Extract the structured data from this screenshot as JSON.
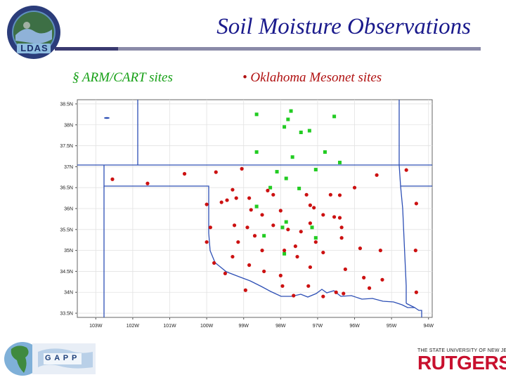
{
  "title": "Soil Moisture Observations",
  "logo": {
    "text": "LDAS",
    "icon": "ldas-globe-logo"
  },
  "legend": {
    "arm": {
      "bullet": "§",
      "label": "ARM/CART sites",
      "color": "#16b816"
    },
    "mesonet": {
      "bullet": "•",
      "label": "Oklahoma Mesonet sites",
      "color": "#cc1111"
    }
  },
  "chart_data": {
    "type": "scatter",
    "title": "",
    "xlabel": "",
    "ylabel": "",
    "xlim": [
      -103.5,
      -93.9
    ],
    "ylim": [
      33.4,
      38.6
    ],
    "grid": true,
    "x_ticks": [
      -103,
      -102,
      -101,
      -100,
      -99,
      -98,
      -97,
      -96,
      -95,
      -94
    ],
    "x_tick_labels": [
      "103W",
      "102W",
      "101W",
      "100W",
      "99W",
      "98W",
      "97W",
      "96W",
      "95W",
      "94W"
    ],
    "y_ticks": [
      38.5,
      38,
      37.5,
      37,
      36.5,
      36,
      35.5,
      35,
      34.5,
      34,
      33.5
    ],
    "y_tick_labels": [
      "38.5N",
      "38N",
      "37.5N",
      "37N",
      "36.5N",
      "36N",
      "35.5N",
      "35N",
      "34.5N",
      "34N",
      "33.5N"
    ],
    "series": [
      {
        "name": "ARM/CART sites",
        "color": "#22cc22",
        "marker": "square",
        "points": [
          [
            -98.65,
            38.25
          ],
          [
            -97.72,
            38.33
          ],
          [
            -97.8,
            38.13
          ],
          [
            -97.22,
            37.86
          ],
          [
            -96.55,
            38.2
          ],
          [
            -98.65,
            37.35
          ],
          [
            -97.9,
            37.95
          ],
          [
            -97.45,
            37.82
          ],
          [
            -97.68,
            37.23
          ],
          [
            -96.8,
            37.35
          ],
          [
            -96.4,
            37.1
          ],
          [
            -98.1,
            36.88
          ],
          [
            -97.05,
            36.93
          ],
          [
            -97.85,
            36.72
          ],
          [
            -97.5,
            36.48
          ],
          [
            -98.28,
            36.5
          ],
          [
            -98.65,
            36.05
          ],
          [
            -98.45,
            35.35
          ],
          [
            -97.95,
            35.55
          ],
          [
            -97.85,
            35.68
          ],
          [
            -97.15,
            35.55
          ],
          [
            -97.05,
            35.3
          ],
          [
            -97.9,
            34.92
          ]
        ]
      },
      {
        "name": "Oklahoma Mesonet sites",
        "color": "#cc1111",
        "marker": "circle",
        "points": [
          [
            -102.55,
            36.7
          ],
          [
            -101.6,
            36.6
          ],
          [
            -100.6,
            36.83
          ],
          [
            -99.75,
            36.87
          ],
          [
            -99.05,
            36.95
          ],
          [
            -99.3,
            36.45
          ],
          [
            -99.45,
            36.2
          ],
          [
            -98.35,
            36.43
          ],
          [
            -98.2,
            36.33
          ],
          [
            -97.3,
            36.33
          ],
          [
            -96.65,
            36.33
          ],
          [
            -96.4,
            36.32
          ],
          [
            -96.0,
            36.5
          ],
          [
            -95.4,
            36.8
          ],
          [
            -94.6,
            36.92
          ],
          [
            -94.33,
            36.12
          ],
          [
            -100.0,
            36.1
          ],
          [
            -99.6,
            36.15
          ],
          [
            -99.2,
            36.25
          ],
          [
            -98.85,
            36.25
          ],
          [
            -98.8,
            35.97
          ],
          [
            -98.5,
            35.85
          ],
          [
            -98.0,
            35.95
          ],
          [
            -97.2,
            36.08
          ],
          [
            -97.1,
            36.02
          ],
          [
            -96.85,
            35.85
          ],
          [
            -96.4,
            35.78
          ],
          [
            -96.35,
            35.55
          ],
          [
            -96.55,
            35.8
          ],
          [
            -97.2,
            35.65
          ],
          [
            -97.45,
            35.45
          ],
          [
            -97.8,
            35.5
          ],
          [
            -98.2,
            35.6
          ],
          [
            -98.9,
            35.55
          ],
          [
            -99.25,
            35.6
          ],
          [
            -99.9,
            35.55
          ],
          [
            -100.0,
            35.2
          ],
          [
            -99.15,
            35.2
          ],
          [
            -98.7,
            35.35
          ],
          [
            -98.5,
            35.0
          ],
          [
            -97.9,
            35.0
          ],
          [
            -97.6,
            35.1
          ],
          [
            -97.05,
            35.2
          ],
          [
            -96.85,
            34.95
          ],
          [
            -96.35,
            35.3
          ],
          [
            -95.85,
            35.05
          ],
          [
            -95.3,
            35.0
          ],
          [
            -94.35,
            35.0
          ],
          [
            -99.3,
            34.85
          ],
          [
            -98.85,
            34.65
          ],
          [
            -99.8,
            34.7
          ],
          [
            -99.5,
            34.45
          ],
          [
            -98.45,
            34.5
          ],
          [
            -98.0,
            34.4
          ],
          [
            -97.55,
            34.85
          ],
          [
            -97.2,
            34.6
          ],
          [
            -96.25,
            34.55
          ],
          [
            -95.75,
            34.35
          ],
          [
            -95.25,
            34.3
          ],
          [
            -94.33,
            34.0
          ],
          [
            -97.25,
            34.15
          ],
          [
            -96.5,
            34.0
          ],
          [
            -97.95,
            34.15
          ],
          [
            -98.95,
            34.05
          ],
          [
            -97.65,
            33.92
          ],
          [
            -96.85,
            33.9
          ],
          [
            -96.3,
            33.97
          ],
          [
            -95.6,
            34.1
          ]
        ]
      }
    ]
  },
  "footer": {
    "gapp": {
      "text": "G A P P"
    },
    "rutgers": {
      "university": "THE STATE UNIVERSITY OF NEW JERSEY",
      "name": "RUTGERS"
    }
  }
}
